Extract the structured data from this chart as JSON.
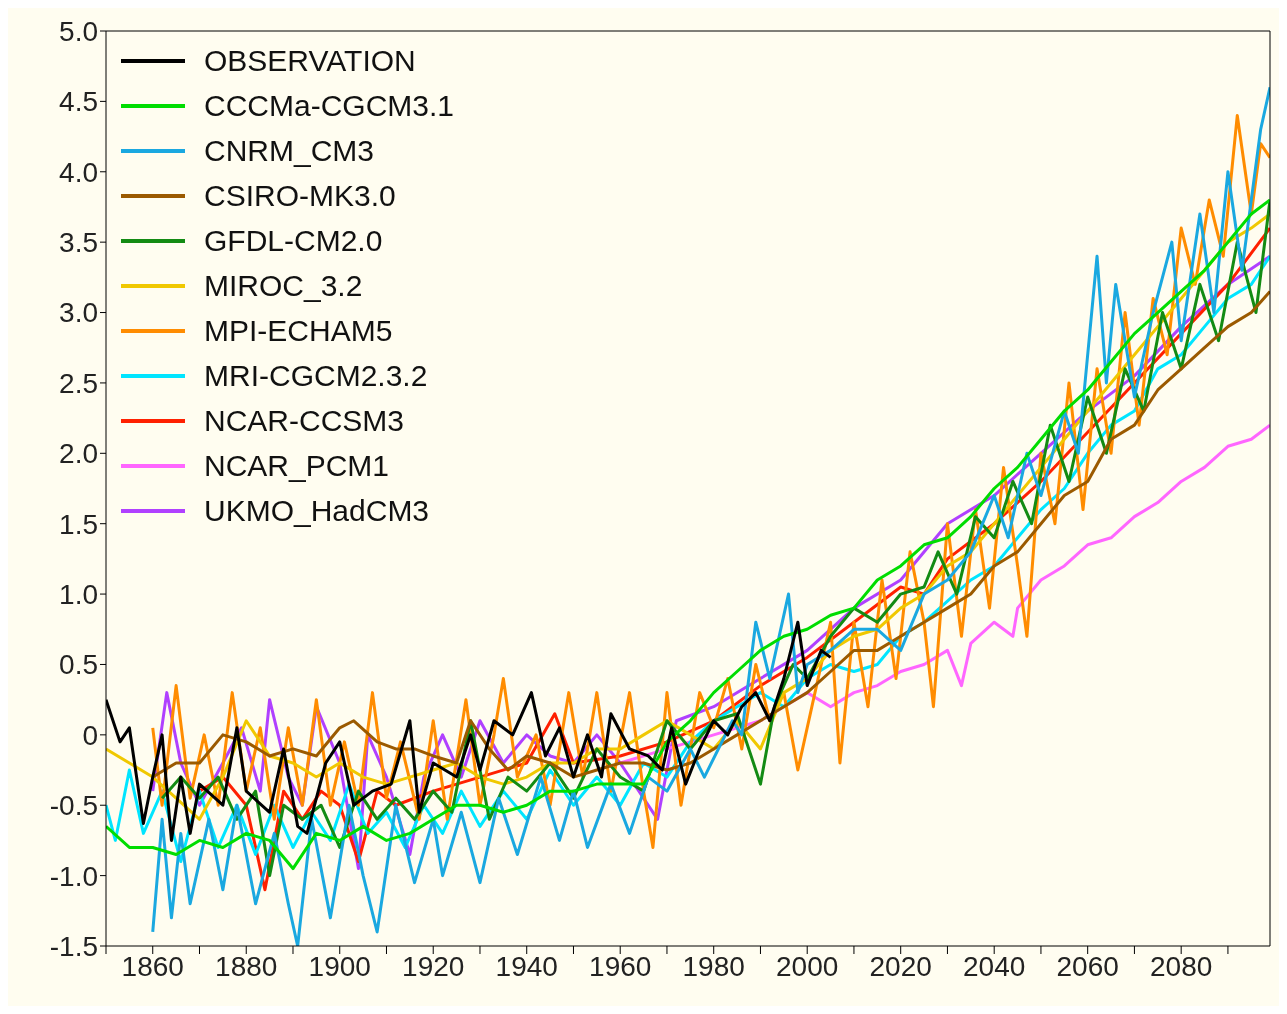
{
  "chart_data": {
    "type": "line",
    "xlim": [
      1850,
      2099
    ],
    "xticks": [
      {
        "value": 1850,
        "label": null
      },
      1860,
      {
        "value": 1870,
        "label": null
      },
      1880,
      {
        "value": 1890,
        "label": null
      },
      1900,
      {
        "value": 1910,
        "label": null
      },
      1920,
      {
        "value": 1930,
        "label": null
      },
      1940,
      {
        "value": 1950,
        "label": null
      },
      1960,
      {
        "value": 1970,
        "label": null
      },
      1980,
      {
        "value": 1990,
        "label": null
      },
      2000,
      {
        "value": 2010,
        "label": null
      },
      2020,
      {
        "value": 2030,
        "label": null
      },
      2040,
      {
        "value": 2050,
        "label": null
      },
      2060,
      {
        "value": 2070,
        "label": null
      },
      2080,
      {
        "value": 2090,
        "label": null
      }
    ],
    "ylim": [
      -1.5,
      5.0
    ],
    "yticks": [
      {
        "value": -1.5,
        "label": "-1.5"
      },
      {
        "value": -1,
        "label": "-1.0"
      },
      {
        "value": -0.5,
        "label": "-0.5"
      },
      0,
      {
        "value": 0.5,
        "label": "0.5"
      },
      {
        "value": 1,
        "label": "1.0"
      },
      {
        "value": 1.5,
        "label": "1.5"
      },
      {
        "value": 2,
        "label": "2.0"
      },
      {
        "value": 2.5,
        "label": "2.5"
      },
      {
        "value": 3,
        "label": "3.0"
      },
      {
        "value": 3.5,
        "label": "3.5"
      },
      {
        "value": 4,
        "label": "4.0"
      },
      {
        "value": 4.5,
        "label": "4.5"
      },
      {
        "value": 5,
        "label": "5.0"
      }
    ],
    "legend": "top left",
    "marker": "none",
    "line_style": "solid",
    "series": [
      {
        "name": "OBSERVATION",
        "color": "#000000",
        "x": [
          1850,
          1853,
          1855,
          1858,
          1860,
          1862,
          1864,
          1866,
          1868,
          1870,
          1875,
          1878,
          1880,
          1885,
          1888,
          1891,
          1893,
          1897,
          1900,
          1903,
          1907,
          1911,
          1915,
          1917,
          1920,
          1925,
          1928,
          1930,
          1933,
          1937,
          1941,
          1944,
          1947,
          1950,
          1953,
          1956,
          1958,
          1962,
          1966,
          1969,
          1971,
          1974,
          1977,
          1980,
          1983,
          1986,
          1989,
          1992,
          1995,
          1998,
          2000,
          2003,
          2005
        ],
        "values": [
          0.25,
          -0.05,
          0.05,
          -0.63,
          -0.3,
          0.0,
          -0.75,
          -0.3,
          -0.7,
          -0.35,
          -0.5,
          0.05,
          -0.4,
          -0.55,
          -0.1,
          -0.65,
          -0.7,
          -0.2,
          -0.05,
          -0.5,
          -0.4,
          -0.35,
          0.1,
          -0.55,
          -0.2,
          -0.3,
          0.0,
          -0.25,
          0.1,
          0.0,
          0.3,
          -0.15,
          0.05,
          -0.3,
          0.0,
          -0.3,
          0.15,
          -0.1,
          -0.15,
          -0.25,
          0.05,
          -0.35,
          -0.1,
          0.1,
          0.0,
          0.2,
          0.3,
          0.1,
          0.4,
          0.8,
          0.35,
          0.6,
          0.55
        ]
      },
      {
        "name": "CCCMa-CGCM3.1",
        "color": "#00dd00",
        "x": [
          1850,
          1855,
          1860,
          1865,
          1870,
          1875,
          1880,
          1885,
          1890,
          1895,
          1900,
          1905,
          1910,
          1915,
          1920,
          1925,
          1930,
          1935,
          1940,
          1945,
          1950,
          1955,
          1960,
          1965,
          1970,
          1975,
          1980,
          1985,
          1990,
          1995,
          2000,
          2005,
          2010,
          2015,
          2020,
          2025,
          2030,
          2035,
          2040,
          2045,
          2050,
          2055,
          2060,
          2065,
          2070,
          2075,
          2080,
          2085,
          2090,
          2095,
          2099
        ],
        "values": [
          -0.65,
          -0.8,
          -0.8,
          -0.85,
          -0.75,
          -0.8,
          -0.7,
          -0.75,
          -0.95,
          -0.7,
          -0.75,
          -0.65,
          -0.75,
          -0.7,
          -0.6,
          -0.5,
          -0.5,
          -0.55,
          -0.5,
          -0.4,
          -0.4,
          -0.35,
          -0.35,
          -0.35,
          -0.05,
          0.1,
          0.3,
          0.45,
          0.6,
          0.7,
          0.75,
          0.85,
          0.9,
          1.1,
          1.2,
          1.35,
          1.4,
          1.55,
          1.75,
          1.9,
          2.1,
          2.3,
          2.45,
          2.65,
          2.85,
          3.0,
          3.15,
          3.3,
          3.5,
          3.7,
          3.8
        ]
      },
      {
        "name": "CNRM_CM3",
        "color": "#1aa8e0",
        "x": [
          1860,
          1862,
          1864,
          1866,
          1868,
          1872,
          1875,
          1878,
          1882,
          1886,
          1889,
          1891,
          1894,
          1898,
          1902,
          1905,
          1908,
          1912,
          1916,
          1920,
          1922,
          1926,
          1930,
          1934,
          1938,
          1943,
          1947,
          1950,
          1953,
          1958,
          1962,
          1966,
          1970,
          1975,
          1978,
          1984,
          1986,
          1989,
          1992,
          1996,
          1998,
          2000,
          2005,
          2010,
          2015,
          2020,
          2025,
          2030,
          2035,
          2040,
          2043,
          2047,
          2050,
          2055,
          2058,
          2062,
          2064,
          2066,
          2070,
          2074,
          2078,
          2080,
          2084,
          2087,
          2090,
          2093,
          2097,
          2099
        ],
        "values": [
          -1.4,
          -0.6,
          -1.3,
          -0.7,
          -1.2,
          -0.6,
          -1.1,
          -0.5,
          -1.2,
          -0.7,
          -1.2,
          -1.5,
          -0.6,
          -1.3,
          -0.5,
          -1.0,
          -1.4,
          -0.5,
          -1.05,
          -0.6,
          -1.0,
          -0.55,
          -1.05,
          -0.45,
          -0.85,
          -0.3,
          -0.75,
          -0.4,
          -0.8,
          -0.35,
          -0.7,
          -0.3,
          -0.4,
          -0.1,
          -0.3,
          0.1,
          0.0,
          0.8,
          0.4,
          1.0,
          0.3,
          0.5,
          0.6,
          0.75,
          0.75,
          0.6,
          1.0,
          1.1,
          1.3,
          1.7,
          1.4,
          2.0,
          1.7,
          2.3,
          2.0,
          3.4,
          2.5,
          3.2,
          2.4,
          3.0,
          3.5,
          2.8,
          3.7,
          3.0,
          4.0,
          3.3,
          4.3,
          4.6
        ]
      },
      {
        "name": "CSIRO-MK3.0",
        "color": "#9b5a00",
        "x": [
          1860,
          1865,
          1870,
          1875,
          1880,
          1885,
          1890,
          1895,
          1900,
          1903,
          1908,
          1912,
          1916,
          1920,
          1925,
          1928,
          1932,
          1936,
          1940,
          1945,
          1950,
          1955,
          1960,
          1965,
          1970,
          1975,
          1980,
          1985,
          1990,
          1995,
          2000,
          2005,
          2010,
          2015,
          2020,
          2025,
          2030,
          2035,
          2040,
          2045,
          2050,
          2055,
          2060,
          2065,
          2070,
          2075,
          2080,
          2085,
          2090,
          2095,
          2099
        ],
        "values": [
          -0.3,
          -0.2,
          -0.2,
          0.0,
          -0.05,
          -0.15,
          -0.1,
          -0.15,
          0.05,
          0.1,
          -0.05,
          -0.1,
          -0.1,
          -0.15,
          -0.2,
          0.1,
          -0.1,
          -0.25,
          -0.15,
          -0.2,
          -0.3,
          -0.25,
          -0.2,
          -0.2,
          -0.25,
          -0.2,
          -0.1,
          0.0,
          0.1,
          0.2,
          0.3,
          0.45,
          0.6,
          0.6,
          0.7,
          0.8,
          0.9,
          1.0,
          1.2,
          1.3,
          1.5,
          1.7,
          1.8,
          2.1,
          2.2,
          2.45,
          2.6,
          2.75,
          2.9,
          3.0,
          3.15
        ]
      },
      {
        "name": "GFDL-CM2.0",
        "color": "#138b13",
        "x": [
          1862,
          1866,
          1870,
          1874,
          1878,
          1882,
          1885,
          1888,
          1892,
          1896,
          1900,
          1904,
          1908,
          1912,
          1916,
          1920,
          1924,
          1928,
          1932,
          1936,
          1940,
          1945,
          1950,
          1955,
          1960,
          1965,
          1970,
          1975,
          1980,
          1985,
          1990,
          1993,
          1997,
          2000,
          2005,
          2010,
          2015,
          2020,
          2025,
          2028,
          2032,
          2036,
          2040,
          2044,
          2048,
          2052,
          2056,
          2060,
          2064,
          2068,
          2072,
          2076,
          2080,
          2084,
          2088,
          2092,
          2096,
          2099
        ],
        "values": [
          -0.45,
          -0.3,
          -0.45,
          -0.3,
          -0.6,
          -0.4,
          -1.0,
          -0.5,
          -0.6,
          -0.5,
          -0.8,
          -0.4,
          -0.6,
          -0.45,
          -0.6,
          -0.4,
          -0.55,
          0.1,
          -0.6,
          -0.3,
          -0.4,
          -0.2,
          -0.45,
          -0.1,
          -0.3,
          -0.4,
          0.1,
          -0.1,
          0.1,
          0.15,
          -0.35,
          0.2,
          0.5,
          0.4,
          0.7,
          0.9,
          0.8,
          1.0,
          1.05,
          1.3,
          1.0,
          1.55,
          1.4,
          1.8,
          1.5,
          2.2,
          1.8,
          2.4,
          2.0,
          2.6,
          2.3,
          3.0,
          2.6,
          3.2,
          2.8,
          3.5,
          3.0,
          3.8
        ]
      },
      {
        "name": "MIROC_3.2",
        "color": "#f0c800",
        "x": [
          1850,
          1855,
          1860,
          1865,
          1870,
          1875,
          1880,
          1885,
          1890,
          1895,
          1900,
          1905,
          1910,
          1915,
          1920,
          1925,
          1930,
          1935,
          1940,
          1945,
          1950,
          1955,
          1960,
          1965,
          1970,
          1975,
          1980,
          1985,
          1990,
          1995,
          2000,
          2005,
          2010,
          2015,
          2020,
          2025,
          2030,
          2035,
          2040,
          2045,
          2050,
          2055,
          2060,
          2065,
          2070,
          2075,
          2080,
          2085,
          2090,
          2095,
          2099
        ],
        "values": [
          -0.1,
          -0.2,
          -0.3,
          -0.45,
          -0.6,
          -0.3,
          0.1,
          -0.15,
          -0.2,
          -0.3,
          -0.2,
          -0.3,
          -0.35,
          -0.3,
          -0.25,
          -0.2,
          -0.3,
          -0.35,
          -0.3,
          -0.2,
          -0.2,
          -0.1,
          -0.1,
          0.0,
          0.1,
          0.0,
          -0.1,
          0.1,
          -0.1,
          0.3,
          0.4,
          0.6,
          0.7,
          0.75,
          0.9,
          1.0,
          1.2,
          1.3,
          1.5,
          1.7,
          1.9,
          2.1,
          2.3,
          2.5,
          2.7,
          2.9,
          3.1,
          3.3,
          3.5,
          3.6,
          3.7
        ]
      },
      {
        "name": "MPI-ECHAM5",
        "color": "#ff8c00",
        "x": [
          1860,
          1862,
          1865,
          1868,
          1871,
          1874,
          1877,
          1880,
          1883,
          1886,
          1889,
          1892,
          1895,
          1898,
          1901,
          1904,
          1907,
          1910,
          1913,
          1917,
          1920,
          1923,
          1927,
          1930,
          1933,
          1935,
          1938,
          1942,
          1945,
          1949,
          1952,
          1955,
          1958,
          1962,
          1965,
          1967,
          1970,
          1973,
          1977,
          1980,
          1983,
          1986,
          1989,
          1992,
          1995,
          1998,
          2001,
          2003,
          2005,
          2007,
          2010,
          2013,
          2016,
          2019,
          2022,
          2025,
          2027,
          2030,
          2033,
          2036,
          2039,
          2042,
          2045,
          2047,
          2050,
          2053,
          2056,
          2059,
          2062,
          2065,
          2068,
          2071,
          2074,
          2077,
          2080,
          2083,
          2086,
          2089,
          2092,
          2095,
          2097,
          2099
        ],
        "values": [
          0.05,
          -0.5,
          0.35,
          -0.45,
          0.0,
          -0.5,
          0.3,
          -0.4,
          0.05,
          -0.6,
          0.05,
          -0.5,
          0.25,
          -0.5,
          -0.05,
          -0.5,
          0.3,
          -0.45,
          -0.05,
          -0.6,
          0.1,
          -0.6,
          0.25,
          -0.5,
          0.0,
          0.4,
          -0.3,
          0.0,
          -0.5,
          0.3,
          -0.3,
          0.3,
          -0.4,
          0.3,
          -0.4,
          -0.8,
          0.3,
          -0.5,
          0.3,
          0.05,
          0.4,
          -0.1,
          0.5,
          0.1,
          0.3,
          -0.25,
          0.2,
          0.5,
          0.8,
          -0.2,
          0.8,
          0.2,
          1.1,
          0.4,
          1.3,
          0.8,
          0.2,
          1.5,
          0.7,
          1.6,
          0.9,
          1.9,
          1.2,
          0.7,
          2.0,
          1.5,
          2.5,
          1.6,
          2.6,
          2.0,
          3.0,
          2.2,
          3.1,
          2.7,
          3.6,
          3.2,
          3.8,
          3.4,
          4.4,
          3.7,
          4.2,
          4.1
        ]
      },
      {
        "name": "MRI-CGCM2.3.2",
        "color": "#00e5ff",
        "x": [
          1850,
          1852,
          1855,
          1858,
          1862,
          1866,
          1870,
          1874,
          1878,
          1882,
          1886,
          1890,
          1894,
          1898,
          1902,
          1906,
          1910,
          1914,
          1918,
          1922,
          1926,
          1930,
          1935,
          1940,
          1945,
          1950,
          1955,
          1960,
          1965,
          1970,
          1975,
          1980,
          1985,
          1990,
          1995,
          2000,
          2005,
          2010,
          2015,
          2020,
          2025,
          2030,
          2035,
          2040,
          2045,
          2050,
          2055,
          2060,
          2065,
          2070,
          2075,
          2080,
          2085,
          2090,
          2095,
          2099
        ],
        "values": [
          -0.5,
          -0.75,
          -0.25,
          -0.7,
          -0.4,
          -0.9,
          -0.4,
          -0.8,
          -0.5,
          -0.85,
          -0.5,
          -0.8,
          -0.55,
          -0.75,
          -0.35,
          -0.7,
          -0.55,
          -0.8,
          -0.5,
          -0.7,
          -0.4,
          -0.65,
          -0.4,
          -0.6,
          -0.25,
          -0.5,
          -0.3,
          -0.5,
          -0.2,
          -0.3,
          -0.05,
          0.1,
          0.2,
          0.3,
          0.2,
          0.4,
          0.5,
          0.45,
          0.5,
          0.7,
          0.8,
          0.95,
          1.1,
          1.2,
          1.4,
          1.6,
          1.75,
          2.0,
          2.2,
          2.3,
          2.6,
          2.7,
          2.9,
          3.1,
          3.2,
          3.4
        ]
      },
      {
        "name": "NCAR-CCSM3",
        "color": "#ff2000",
        "x": [
          1870,
          1875,
          1880,
          1884,
          1888,
          1892,
          1896,
          1900,
          1904,
          1908,
          1912,
          1920,
          1930,
          1940,
          1946,
          1950,
          1960,
          1970,
          1980,
          1990,
          2000,
          2010,
          2020,
          2025,
          2030,
          2040,
          2050,
          2060,
          2070,
          2080,
          2090,
          2099
        ],
        "values": [
          -0.4,
          -0.3,
          -0.5,
          -1.1,
          -0.4,
          -0.6,
          -0.4,
          -0.5,
          -0.9,
          -0.4,
          -0.5,
          -0.4,
          -0.3,
          -0.2,
          0.15,
          -0.2,
          -0.15,
          -0.05,
          0.1,
          0.35,
          0.55,
          0.8,
          1.05,
          1.0,
          1.25,
          1.5,
          1.8,
          2.15,
          2.5,
          2.85,
          3.2,
          3.6
        ]
      },
      {
        "name": "NCAR_PCM1",
        "color": "#ff66ff",
        "x": [
          1960,
          1970,
          1980,
          1990,
          2000,
          2005,
          2010,
          2015,
          2020,
          2025,
          2030,
          2033,
          2035,
          2040,
          2044,
          2045,
          2050,
          2055,
          2060,
          2065,
          2070,
          2075,
          2080,
          2085,
          2090,
          2095,
          2099
        ],
        "values": [
          -0.2,
          -0.1,
          0.0,
          0.1,
          0.3,
          0.2,
          0.3,
          0.35,
          0.45,
          0.5,
          0.6,
          0.35,
          0.65,
          0.8,
          0.7,
          0.9,
          1.1,
          1.2,
          1.35,
          1.4,
          1.55,
          1.65,
          1.8,
          1.9,
          2.05,
          2.1,
          2.2
        ]
      },
      {
        "name": "UKMO_HadCM3",
        "color": "#b040ff",
        "x": [
          1860,
          1863,
          1866,
          1870,
          1875,
          1879,
          1883,
          1885,
          1889,
          1892,
          1895,
          1900,
          1904,
          1906,
          1910,
          1915,
          1918,
          1922,
          1926,
          1930,
          1935,
          1940,
          1945,
          1950,
          1955,
          1960,
          1968,
          1972,
          1980,
          1990,
          2000,
          2010,
          2020,
          2030,
          2040,
          2050,
          2060,
          2070,
          2080,
          2090,
          2099
        ],
        "values": [
          -0.4,
          0.3,
          -0.2,
          -0.5,
          -0.2,
          0.05,
          -0.4,
          0.25,
          -0.3,
          -0.5,
          0.2,
          -0.2,
          -0.95,
          0.0,
          -0.3,
          -0.85,
          -0.3,
          0.0,
          -0.3,
          0.1,
          -0.2,
          0.0,
          -0.15,
          -0.2,
          0.0,
          -0.2,
          -0.6,
          0.1,
          0.2,
          0.4,
          0.6,
          0.9,
          1.1,
          1.5,
          1.7,
          2.0,
          2.3,
          2.55,
          2.9,
          3.2,
          3.4
        ]
      }
    ]
  }
}
